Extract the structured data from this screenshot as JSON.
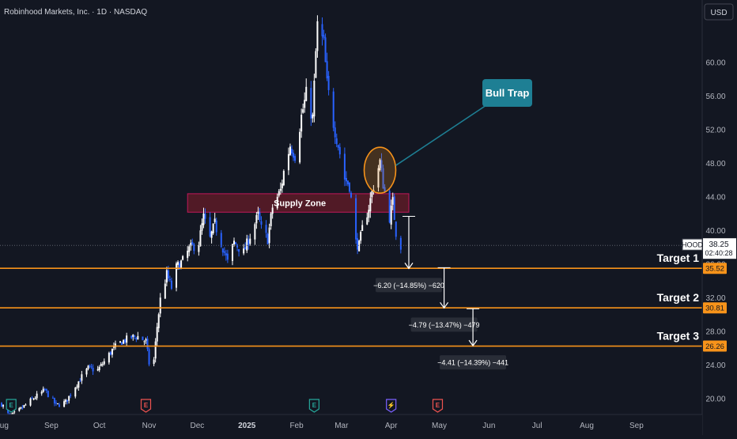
{
  "header": {
    "symbol_title": "Robinhood Markets, Inc. · 1D · NASDAQ"
  },
  "currency_button": {
    "label": "USD"
  },
  "colors": {
    "background": "#131722",
    "bull": "#ffffff",
    "bear": "#2962ff",
    "target_line": "#f7931a",
    "supply_zone_fill": "#5d1b27",
    "supply_zone_border": "#c2185b",
    "callout": "#1e7f94",
    "callout_text": "#ffffff"
  },
  "annotations": {
    "supply_zone": {
      "label": "Supply Zone",
      "price_low": 42.2,
      "price_high": 44.4,
      "from": "2024-11-25",
      "to": "2025-04-12"
    },
    "bull_trap": {
      "label": "Bull Trap",
      "price": 47.2,
      "date": "2025-03-25"
    },
    "targets": [
      {
        "label": "Target 1",
        "price": 35.52,
        "price_label": "35.52"
      },
      {
        "label": "Target 2",
        "price": 30.81,
        "price_label": "30.81"
      },
      {
        "label": "Target 3",
        "price": 26.26,
        "price_label": "26.26"
      }
    ],
    "measures": [
      {
        "label": "−6.20 (−14.85%) −620",
        "from_price": 41.7,
        "to_price": 35.5
      },
      {
        "label": "−4.79 (−13.47%) −479",
        "from_price": 35.6,
        "to_price": 30.8
      },
      {
        "label": "−4.41 (−14.39%) −441",
        "from_price": 30.7,
        "to_price": 26.3
      }
    ],
    "current_price": {
      "ticker": "HOOD",
      "price": "38.25",
      "countdown": "02:40:28",
      "value": 38.25
    },
    "event_markers": [
      {
        "kind": "earnings",
        "symbol": "E",
        "date": "2024-08-07",
        "color": "#26a69a"
      },
      {
        "kind": "earnings",
        "symbol": "E",
        "date": "2024-10-30",
        "color": "#ef5350"
      },
      {
        "kind": "earnings",
        "symbol": "E",
        "date": "2025-02-12",
        "color": "#26a69a"
      },
      {
        "kind": "split",
        "symbol": "⚡",
        "date": "2025-04-01",
        "color": "#7b61ff"
      },
      {
        "kind": "earnings",
        "symbol": "E",
        "date": "2025-04-30",
        "color": "#ef5350"
      }
    ]
  },
  "chart_data": {
    "type": "candlestick",
    "title": "Robinhood Markets, Inc. · 1D · NASDAQ",
    "symbol": "HOOD",
    "currency": "USD",
    "ylim": [
      16.8,
      66.8
    ],
    "y_ticks": [
      "20.00",
      "24.00",
      "28.00",
      "32.00",
      "36.00",
      "40.00",
      "44.00",
      "48.00",
      "52.00",
      "56.00",
      "60.00"
    ],
    "x_range": [
      "2024-07-31",
      "2025-10-12"
    ],
    "x_ticks": [
      {
        "label": "Aug",
        "date": "2024-08-01"
      },
      {
        "label": "Sep",
        "date": "2024-09-01"
      },
      {
        "label": "Oct",
        "date": "2024-10-01"
      },
      {
        "label": "Nov",
        "date": "2024-11-01"
      },
      {
        "label": "Dec",
        "date": "2024-12-01"
      },
      {
        "label": "2025",
        "date": "2025-01-01",
        "bold": true
      },
      {
        "label": "Feb",
        "date": "2025-02-01"
      },
      {
        "label": "Mar",
        "date": "2025-03-01"
      },
      {
        "label": "Apr",
        "date": "2025-04-01"
      },
      {
        "label": "May",
        "date": "2025-05-01"
      },
      {
        "label": "Jun",
        "date": "2025-06-01"
      },
      {
        "label": "Jul",
        "date": "2025-07-01"
      },
      {
        "label": "Aug",
        "date": "2025-08-01"
      },
      {
        "label": "Sep",
        "date": "2025-09-01"
      }
    ],
    "close_path": [
      [
        "2024-08-01",
        19.4
      ],
      [
        "2024-08-06",
        17.8
      ],
      [
        "2024-08-12",
        18.6
      ],
      [
        "2024-08-20",
        19.9
      ],
      [
        "2024-08-28",
        21.0
      ],
      [
        "2024-09-04",
        19.2
      ],
      [
        "2024-09-10",
        19.6
      ],
      [
        "2024-09-16",
        21.5
      ],
      [
        "2024-09-20",
        22.6
      ],
      [
        "2024-09-24",
        23.6
      ],
      [
        "2024-09-30",
        23.4
      ],
      [
        "2024-10-04",
        24.4
      ],
      [
        "2024-10-09",
        25.8
      ],
      [
        "2024-10-15",
        26.8
      ],
      [
        "2024-10-21",
        27.3
      ],
      [
        "2024-10-25",
        27.4
      ],
      [
        "2024-10-30",
        26.8
      ],
      [
        "2024-11-01",
        24.2
      ],
      [
        "2024-11-04",
        24.6
      ],
      [
        "2024-11-06",
        28.6
      ],
      [
        "2024-11-08",
        31.8
      ],
      [
        "2024-11-12",
        34.8
      ],
      [
        "2024-11-15",
        33.2
      ],
      [
        "2024-11-18",
        35.6
      ],
      [
        "2024-11-22",
        36.4
      ],
      [
        "2024-11-26",
        37.8
      ],
      [
        "2024-12-02",
        38.6
      ],
      [
        "2024-12-05",
        41.6
      ],
      [
        "2024-12-09",
        39.0
      ],
      [
        "2024-12-12",
        40.8
      ],
      [
        "2024-12-17",
        38.0
      ],
      [
        "2024-12-20",
        36.2
      ],
      [
        "2024-12-24",
        38.6
      ],
      [
        "2024-12-30",
        37.4
      ],
      [
        "2025-01-03",
        39.4
      ],
      [
        "2025-01-08",
        41.8
      ],
      [
        "2025-01-10",
        40.2
      ],
      [
        "2025-01-14",
        39.0
      ],
      [
        "2025-01-17",
        42.8
      ],
      [
        "2025-01-22",
        44.8
      ],
      [
        "2025-01-24",
        47.0
      ],
      [
        "2025-01-28",
        50.2
      ],
      [
        "2025-01-31",
        49.0
      ],
      [
        "2025-02-04",
        53.6
      ],
      [
        "2025-02-07",
        56.2
      ],
      [
        "2025-02-11",
        53.4
      ],
      [
        "2025-02-13",
        61.2
      ],
      [
        "2025-02-14",
        64.4
      ],
      [
        "2025-02-18",
        62.2
      ],
      [
        "2025-02-20",
        57.4
      ],
      [
        "2025-02-24",
        52.8
      ],
      [
        "2025-02-27",
        50.2
      ],
      [
        "2025-03-03",
        46.2
      ],
      [
        "2025-03-06",
        45.4
      ],
      [
        "2025-03-10",
        38.6
      ],
      [
        "2025-03-12",
        38.2
      ],
      [
        "2025-03-14",
        40.2
      ],
      [
        "2025-03-18",
        42.8
      ],
      [
        "2025-03-21",
        45.4
      ],
      [
        "2025-03-25",
        48.2
      ],
      [
        "2025-03-27",
        45.6
      ],
      [
        "2025-03-31",
        41.6
      ],
      [
        "2025-04-02",
        43.4
      ],
      [
        "2025-04-04",
        39.8
      ],
      [
        "2025-04-07",
        38.25
      ]
    ]
  }
}
